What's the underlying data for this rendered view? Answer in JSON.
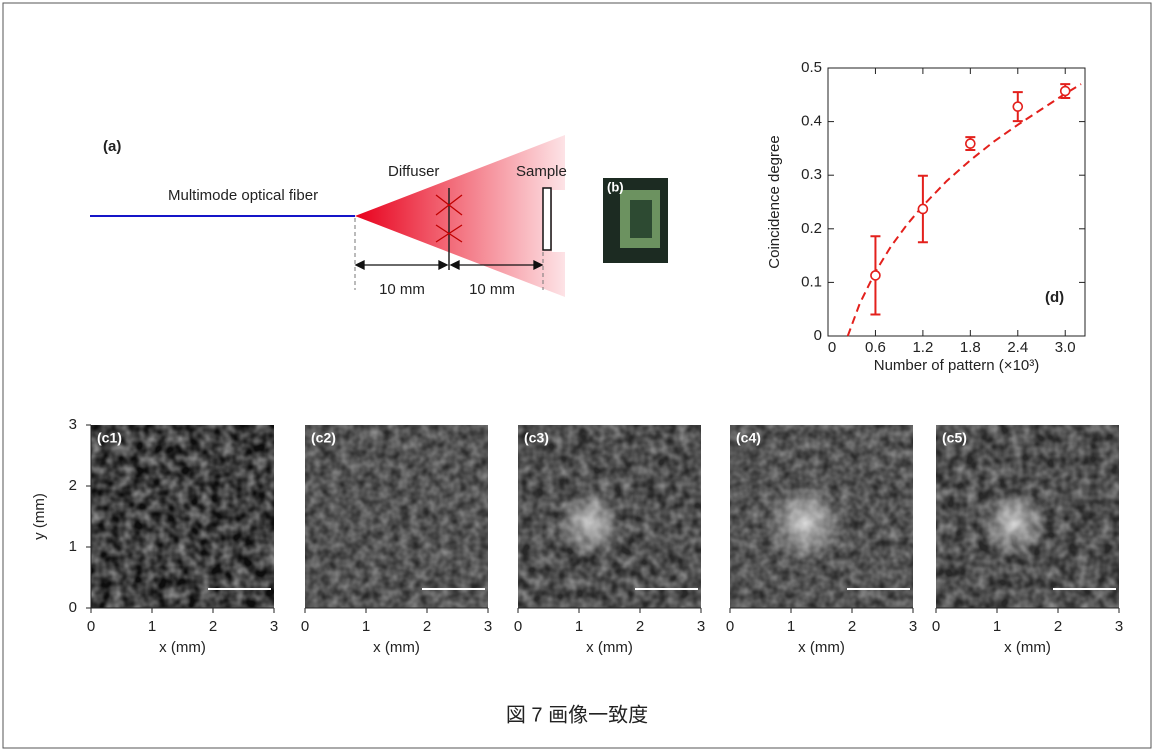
{
  "figure": {
    "diagram": {
      "label": "(a)",
      "fiber": "Multimode optical fiber",
      "diffuser": "Diffuser",
      "sample": "Sample",
      "distances": [
        "10 mm",
        "10 mm"
      ],
      "inset_label": "(b)"
    },
    "images": {
      "xlabel": "x (mm)",
      "ylabel": "y (mm)",
      "xlim": [
        0,
        3
      ],
      "ylim": [
        0,
        3
      ],
      "xticks": [
        0,
        1,
        2,
        3
      ],
      "yticks": [
        0,
        1,
        2,
        3
      ],
      "panels": [
        {
          "label": "(c1)"
        },
        {
          "label": "(c2)"
        },
        {
          "label": "(c3)"
        },
        {
          "label": "(c4)"
        },
        {
          "label": "(c5)"
        }
      ]
    },
    "caption": "図 7 画像一致度"
  },
  "chart_data": {
    "type": "scatter",
    "panel_label": "(d)",
    "xlabel": "Number of pattern (×10³)",
    "ylabel": "Coincidence degree",
    "x": [
      0.6,
      1.2,
      1.8,
      2.4,
      3.0
    ],
    "values": [
      0.113,
      0.237,
      0.359,
      0.428,
      0.457
    ],
    "errors": [
      0.073,
      0.062,
      0.012,
      0.027,
      0.013
    ],
    "fit": {
      "x": [
        0.25,
        0.4,
        0.6,
        0.8,
        1.0,
        1.2,
        1.5,
        1.8,
        2.1,
        2.4,
        2.7,
        3.0,
        3.2
      ],
      "values": [
        0,
        0.06,
        0.12,
        0.168,
        0.208,
        0.243,
        0.289,
        0.328,
        0.363,
        0.394,
        0.423,
        0.452,
        0.47
      ]
    },
    "color": "#e3201c",
    "xlim": [
      0,
      3.25
    ],
    "ylim": [
      0,
      0.5
    ],
    "xticks": [
      0,
      0.6,
      1.2,
      1.8,
      2.4,
      {
        "value": 3,
        "label": "3.0"
      }
    ],
    "yticks": [
      0,
      0.1,
      0.2,
      0.3,
      0.4,
      0.5
    ]
  }
}
